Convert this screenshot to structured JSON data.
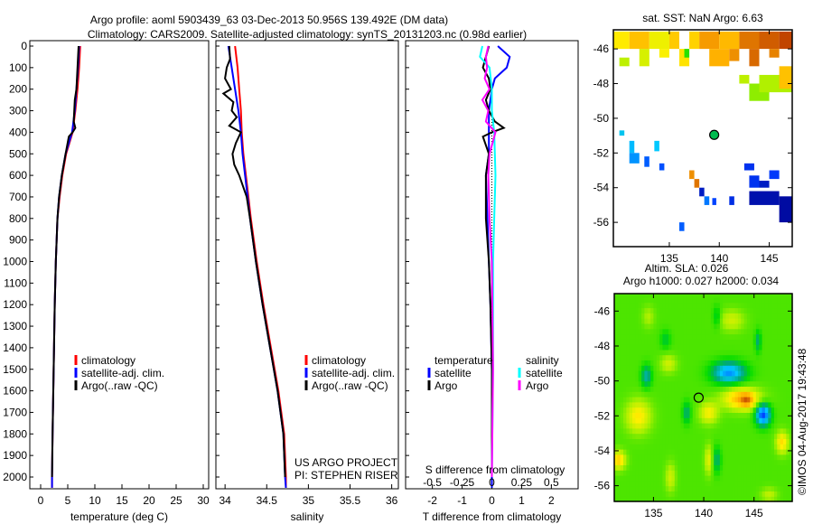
{
  "title_line1": "Argo profile: aoml 5903439_63 03-Dec-2013 50.956S 139.492E (DM data)",
  "title_line2": "Climatology: CARS2009. Satellite-adjusted climatology: synTS_20131203.nc (0.98d earlier)",
  "colors": {
    "climatology": "#ff0000",
    "satellite": "#0000ff",
    "argo": "#000000",
    "sal_satellite": "#00ffff",
    "sal_argo": "#ff00ff"
  },
  "chart_data": [
    {
      "type": "line",
      "name": "temperature-profile",
      "xlabel": "temperature (deg C)",
      "xlim": [
        -2,
        31
      ],
      "ylim": [
        2050,
        0
      ],
      "xticks": [
        "0",
        "5",
        "10",
        "15",
        "20",
        "25",
        "30"
      ],
      "yticks": [
        "0",
        "100",
        "200",
        "300",
        "400",
        "500",
        "600",
        "700",
        "800",
        "900",
        "1000",
        "1100",
        "1200",
        "1300",
        "1400",
        "1500",
        "1600",
        "1700",
        "1800",
        "1900",
        "2000"
      ],
      "legend": [
        "climatology",
        "satellite-adj. clim.",
        "Argo(..raw -QC)"
      ],
      "series": [
        {
          "name": "climatology",
          "color": "#ff0000",
          "depth": [
            0,
            100,
            200,
            300,
            400,
            500,
            600,
            700,
            800,
            1000,
            1200,
            1500,
            1800,
            2000,
            2050
          ],
          "values": [
            7.3,
            7.1,
            6.8,
            6.4,
            5.9,
            4.7,
            4.0,
            3.5,
            3.1,
            2.8,
            2.6,
            2.4,
            2.2,
            2.1,
            2.1
          ]
        },
        {
          "name": "satellite-adj. clim.",
          "color": "#0000ff",
          "depth": [
            0,
            100,
            200,
            300,
            400,
            500,
            600,
            700,
            800,
            1000,
            1200,
            1500,
            1800,
            2000,
            2050
          ],
          "values": [
            7.1,
            6.9,
            6.6,
            6.3,
            5.8,
            4.6,
            3.9,
            3.4,
            3.1,
            2.8,
            2.6,
            2.4,
            2.2,
            2.1,
            2.1
          ]
        },
        {
          "name": "Argo(..raw -QC)",
          "color": "#000000",
          "depth": [
            0,
            50,
            100,
            150,
            200,
            250,
            300,
            350,
            380,
            400,
            420,
            500,
            600,
            700,
            800,
            1000,
            1200,
            1500,
            1800,
            2000
          ],
          "values": [
            7.0,
            6.9,
            6.8,
            6.7,
            6.6,
            6.3,
            6.2,
            6.1,
            6.4,
            5.9,
            5.2,
            4.6,
            3.9,
            3.4,
            3.1,
            2.8,
            2.6,
            2.4,
            2.2,
            2.1
          ]
        }
      ]
    },
    {
      "type": "line",
      "name": "salinity-profile",
      "xlabel": "salinity",
      "xlim": [
        33.89,
        36.08
      ],
      "ylim": [
        2050,
        0
      ],
      "xticks": [
        "34",
        "34.5",
        "35",
        "35.5",
        "36"
      ],
      "legend": [
        "climatology",
        "satellite-adj. clim.",
        "Argo(..raw -QC)"
      ],
      "annotation": [
        "US ARGO PROJECT",
        "PI: STEPHEN RISER"
      ],
      "series": [
        {
          "name": "climatology",
          "color": "#ff0000",
          "depth": [
            0,
            100,
            200,
            300,
            400,
            500,
            600,
            700,
            800,
            1000,
            1200,
            1400,
            1600,
            1800,
            2000,
            2050
          ],
          "values": [
            34.12,
            34.15,
            34.17,
            34.19,
            34.2,
            34.22,
            34.25,
            34.28,
            34.31,
            34.38,
            34.46,
            34.55,
            34.64,
            34.71,
            34.73,
            34.73
          ]
        },
        {
          "name": "satellite-adj. clim.",
          "color": "#0000ff",
          "depth": [
            0,
            100,
            200,
            300,
            400,
            500,
            600,
            700,
            800,
            1000,
            1200,
            1400,
            1600,
            1800,
            2000,
            2050
          ],
          "values": [
            34.04,
            34.08,
            34.12,
            34.16,
            34.19,
            34.21,
            34.24,
            34.27,
            34.3,
            34.37,
            34.45,
            34.54,
            34.63,
            34.7,
            34.72,
            34.73
          ]
        },
        {
          "name": "Argo(..raw -QC)",
          "color": "#000000",
          "depth": [
            0,
            60,
            100,
            150,
            200,
            220,
            260,
            300,
            330,
            370,
            400,
            450,
            500,
            550,
            600,
            700,
            800,
            1000,
            1200,
            1400,
            1600,
            1800,
            2000
          ],
          "values": [
            34.05,
            34.06,
            34.02,
            34.0,
            34.07,
            33.98,
            34.1,
            34.08,
            34.14,
            34.05,
            34.19,
            34.13,
            34.09,
            34.11,
            34.17,
            34.26,
            34.3,
            34.37,
            34.45,
            34.54,
            34.63,
            34.7,
            34.72
          ]
        }
      ]
    },
    {
      "type": "line",
      "name": "difference-profile",
      "xlabel": "T difference from climatology",
      "xlabel_top": "S difference from climatology",
      "xlim": [
        -2.9,
        2.9
      ],
      "s_xlim": [
        -0.725,
        0.725
      ],
      "ylim": [
        2050,
        0
      ],
      "xticks": [
        "-2",
        "-1",
        "0",
        "1",
        "2"
      ],
      "s_xticks": [
        "-0.5",
        "-0.25",
        "0",
        "0.25",
        "0.5"
      ],
      "legend_temperature": [
        "temperature",
        "satellite",
        "Argo"
      ],
      "legend_salinity": [
        "salinity",
        "satellite",
        "Argo"
      ],
      "series": [
        {
          "name": "T satellite",
          "color": "#0000ff",
          "scale": "T",
          "depth": [
            0,
            50,
            100,
            150,
            200,
            300,
            400,
            500,
            600,
            800,
            1000,
            1200,
            1500,
            2000,
            2050
          ],
          "values": [
            0.2,
            0.6,
            0.5,
            0.1,
            0.0,
            -0.1,
            -0.1,
            -0.1,
            -0.2,
            -0.15,
            -0.1,
            -0.05,
            0.0,
            0.0,
            0.0
          ]
        },
        {
          "name": "T Argo",
          "color": "#000000",
          "scale": "T",
          "depth": [
            0,
            50,
            100,
            150,
            200,
            250,
            300,
            350,
            380,
            400,
            420,
            500,
            600,
            800,
            1000,
            1200,
            1500,
            2000
          ],
          "values": [
            -0.1,
            -0.2,
            -0.3,
            -0.1,
            -0.05,
            -0.2,
            -0.1,
            0.1,
            0.4,
            0.0,
            -0.3,
            -0.1,
            -0.2,
            -0.2,
            -0.1,
            -0.05,
            0.0,
            0.0
          ]
        },
        {
          "name": "S satellite",
          "color": "#00ffff",
          "scale": "S",
          "depth": [
            0,
            50,
            100,
            200,
            300,
            400,
            600,
            800,
            1000,
            1500,
            2000
          ],
          "values": [
            -0.08,
            -0.1,
            -0.02,
            0.0,
            0.0,
            0.02,
            0.03,
            0.02,
            0.01,
            0.01,
            0.0
          ]
        },
        {
          "name": "S Argo",
          "color": "#ff00ff",
          "scale": "S",
          "depth": [
            0,
            50,
            100,
            150,
            200,
            250,
            300,
            350,
            400,
            500,
            600,
            800,
            1000,
            1500,
            2000
          ],
          "values": [
            -0.03,
            -0.05,
            -0.04,
            -0.06,
            -0.02,
            -0.08,
            -0.03,
            -0.05,
            0.03,
            -0.02,
            -0.03,
            -0.02,
            0.0,
            0.01,
            0.0
          ]
        }
      ]
    },
    {
      "type": "heatmap",
      "name": "sst-map",
      "title": "sat. SST: NaN Argo: 6.63",
      "xlim": [
        129.4,
        147.3
      ],
      "ylim": [
        -57.4,
        -44.9
      ],
      "xticks": [
        "135",
        "140",
        "145"
      ],
      "yticks": [
        "-46",
        "-48",
        "-50",
        "-52",
        "-54",
        "-56"
      ],
      "argo_position": [
        139.492,
        -50.956
      ],
      "cells": [
        [
          129.4,
          -46,
          131,
          -45,
          8.6
        ],
        [
          131,
          -46,
          133,
          -45,
          9.1
        ],
        [
          133,
          -46,
          135,
          -45,
          8.4
        ],
        [
          135,
          -46,
          136,
          -45,
          9.0
        ],
        [
          137,
          -46,
          138,
          -45,
          8.9
        ],
        [
          138,
          -46,
          140,
          -45,
          9.5
        ],
        [
          140,
          -46,
          142,
          -45,
          9.2
        ],
        [
          142,
          -46,
          144,
          -45,
          9.8
        ],
        [
          144,
          -46,
          146,
          -45,
          10.0
        ],
        [
          146,
          -46,
          147.3,
          -45,
          10.2
        ],
        [
          132,
          -47,
          133,
          -46,
          8.2
        ],
        [
          134,
          -46.5,
          135,
          -46,
          8.5
        ],
        [
          136,
          -47,
          137,
          -46,
          8.7
        ],
        [
          139,
          -47,
          141,
          -46,
          9.3
        ],
        [
          141,
          -46.7,
          142,
          -46,
          9.6
        ],
        [
          143,
          -47,
          144,
          -46,
          9.9
        ],
        [
          145,
          -46.5,
          146,
          -46,
          9.7
        ],
        [
          130,
          -47,
          131,
          -46.5,
          8.0
        ],
        [
          136.5,
          -46.5,
          137,
          -46,
          7.2
        ],
        [
          142,
          -48,
          143,
          -47.5,
          8.0
        ],
        [
          143,
          -49,
          145,
          -48,
          7.7
        ],
        [
          144,
          -48.5,
          147.3,
          -47.5,
          7.9
        ],
        [
          146,
          -48.3,
          147.3,
          -47,
          9.1
        ],
        [
          130,
          -51,
          130.5,
          -50.7,
          5.7
        ],
        [
          131,
          -52,
          131.5,
          -51.3,
          5.5
        ],
        [
          131,
          -52.6,
          132,
          -52,
          5.2
        ],
        [
          132.5,
          -52.8,
          133,
          -52.2,
          4.8
        ],
        [
          133.5,
          -51.9,
          134,
          -51.3,
          5.6
        ],
        [
          134,
          -53,
          134.5,
          -52.6,
          4.7
        ],
        [
          137,
          -53.5,
          137.5,
          -53,
          9.6
        ],
        [
          137.5,
          -54,
          138,
          -53.5,
          9.8
        ],
        [
          138,
          -54.5,
          138.5,
          -54,
          4.0
        ],
        [
          138.5,
          -55,
          139,
          -54.5,
          5.0
        ],
        [
          139.3,
          -55,
          139.7,
          -54.6,
          4.6
        ],
        [
          136,
          -56.5,
          136.5,
          -56,
          4.8
        ],
        [
          141,
          -55,
          141.5,
          -54.5,
          4.3
        ],
        [
          142.5,
          -53,
          143.5,
          -52.6,
          4.4
        ],
        [
          143,
          -54,
          144,
          -53.3,
          4.4
        ],
        [
          143,
          -55,
          146,
          -54.2,
          3.8
        ],
        [
          144,
          -54,
          145,
          -53.6,
          4.0
        ],
        [
          146,
          -56,
          147.3,
          -54.5,
          3.7
        ],
        [
          145,
          -53.5,
          146,
          -53,
          4.5
        ]
      ]
    },
    {
      "type": "heatmap",
      "name": "sla-map",
      "title": "Altim. SLA: 0.026",
      "subtitle": "Argo h1000: 0.027 h2000: 0.034",
      "watermark": "©IMOS 04-Aug-2017 19:43:48",
      "xlim": [
        131.1,
        148.8
      ],
      "ylim": [
        -56.9,
        -45.0
      ],
      "xticks": [
        "135",
        "140",
        "145"
      ],
      "yticks": [
        "-46",
        "-48",
        "-50",
        "-52",
        "-54",
        "-56"
      ],
      "argo_position": [
        139.492,
        -50.956
      ],
      "blobs": [
        [
          142.5,
          -49.5,
          -0.35,
          1.6,
          0.6
        ],
        [
          134.3,
          -49.7,
          -0.2,
          0.5,
          0.6
        ],
        [
          145.9,
          -51.9,
          -0.45,
          0.7,
          0.6
        ],
        [
          138.3,
          -51.8,
          -0.15,
          0.4,
          0.6
        ],
        [
          141.3,
          -54.5,
          -0.15,
          0.4,
          0.7
        ],
        [
          145.4,
          -47.7,
          -0.15,
          0.3,
          0.6
        ],
        [
          141.3,
          -46.3,
          -0.1,
          0.4,
          0.6
        ],
        [
          136.2,
          -47.6,
          -0.1,
          0.5,
          0.5
        ],
        [
          143.8,
          -51.0,
          0.3,
          1.8,
          0.6
        ],
        [
          144.3,
          -51.1,
          0.15,
          0.6,
          0.4
        ],
        [
          140.5,
          -51.8,
          0.18,
          0.9,
          0.6
        ],
        [
          133.5,
          -52.0,
          0.2,
          1.2,
          0.9
        ],
        [
          131.5,
          -54.5,
          0.25,
          0.7,
          0.5
        ],
        [
          136.5,
          -49.0,
          0.12,
          0.8,
          0.5
        ],
        [
          140.5,
          -54.5,
          0.15,
          0.4,
          0.8
        ],
        [
          136.7,
          -55.5,
          0.12,
          0.5,
          0.8
        ],
        [
          142.8,
          -46.5,
          0.12,
          1.2,
          0.6
        ],
        [
          147.8,
          -53.5,
          0.22,
          0.6,
          0.6
        ],
        [
          134.5,
          -46.3,
          0.08,
          0.6,
          0.6
        ],
        [
          146.5,
          -56.5,
          0.1,
          0.8,
          0.4
        ]
      ]
    }
  ]
}
